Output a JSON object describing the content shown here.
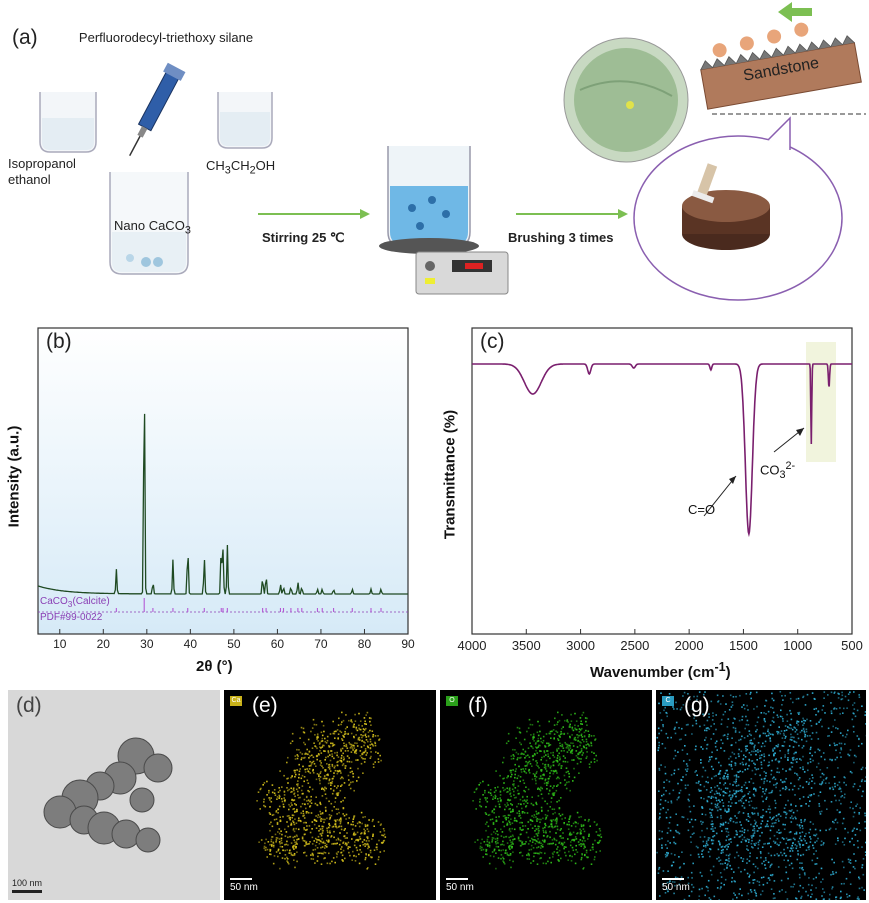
{
  "panel_a": {
    "label": "(a)",
    "silane": "Perfluorodecyl-triethoxy silane",
    "solvent_left": "Isopropanol ethanol",
    "solvent_right": "CH3CH2OH",
    "beaker_main": "Nano CaCO3",
    "step1": "Stirring 25 ℃",
    "step2": "Brushing 3 times",
    "substrate": "Sandstone"
  },
  "panel_b": {
    "label": "(b)",
    "ylabel": "Intensity (a.u.)",
    "xlabel": "2θ (°)",
    "ref1": "CaCO3(Calcite)",
    "ref2": "PDF#99-0022",
    "ticks": [
      "10",
      "20",
      "30",
      "40",
      "50",
      "60",
      "70",
      "80",
      "90"
    ]
  },
  "panel_c": {
    "label": "(c)",
    "ylabel": "Transmittance (%)",
    "xlabel": "Wavenumber (cm-1)",
    "ann1": "C=O",
    "ann2": "CO3 2-",
    "ticks": [
      "4000",
      "3500",
      "3000",
      "2500",
      "2000",
      "1500",
      "1000",
      "500"
    ]
  },
  "panel_em": [
    {
      "label": "(d)",
      "scale": "100 nm"
    },
    {
      "label": "(e)",
      "scale": "50 nm",
      "chip": "Ca",
      "color": "#d7c21c"
    },
    {
      "label": "(f)",
      "scale": "50 nm",
      "chip": "O",
      "color": "#2fbf1a"
    },
    {
      "label": "(g)",
      "scale": "50 nm",
      "chip": "C",
      "color": "#2fb0d6"
    }
  ],
  "chart_data": [
    {
      "type": "line",
      "title": "",
      "xlabel": "2θ (°)",
      "ylabel": "Intensity (a.u.)",
      "xlim": [
        5,
        90
      ],
      "series": [
        {
          "name": "",
          "peaks_2theta": [
            23.0,
            29.4,
            31.4,
            36.0,
            39.4,
            43.2,
            47.1,
            47.5,
            48.5,
            56.6,
            57.4,
            60.7,
            61.4,
            63.1,
            64.7,
            65.6,
            69.2,
            70.3,
            72.9,
            77.2,
            81.5,
            83.8
          ],
          "peak_heights": [
            0.1,
            1.0,
            0.05,
            0.14,
            0.2,
            0.15,
            0.2,
            0.18,
            0.2,
            0.07,
            0.08,
            0.04,
            0.03,
            0.03,
            0.05,
            0.03,
            0.02,
            0.02,
            0.02,
            0.02,
            0.02,
            0.02
          ]
        }
      ],
      "legend": [
        "CaCO3(Calcite)",
        "PDF#99-0022"
      ]
    },
    {
      "type": "line",
      "title": "",
      "xlabel": "Wavenumber (cm-1)",
      "ylabel": "Transmittance (%)",
      "xlim": [
        4000,
        500
      ],
      "x_reversed": true,
      "series": [
        {
          "name": "",
          "bands_cm": [
            3440,
            2920,
            2510,
            1800,
            1450,
            875,
            712
          ],
          "depth": [
            0.15,
            0.05,
            0.02,
            0.03,
            0.85,
            0.4,
            0.12
          ]
        }
      ],
      "annotations": [
        "C=O",
        "CO3 2-"
      ]
    }
  ]
}
